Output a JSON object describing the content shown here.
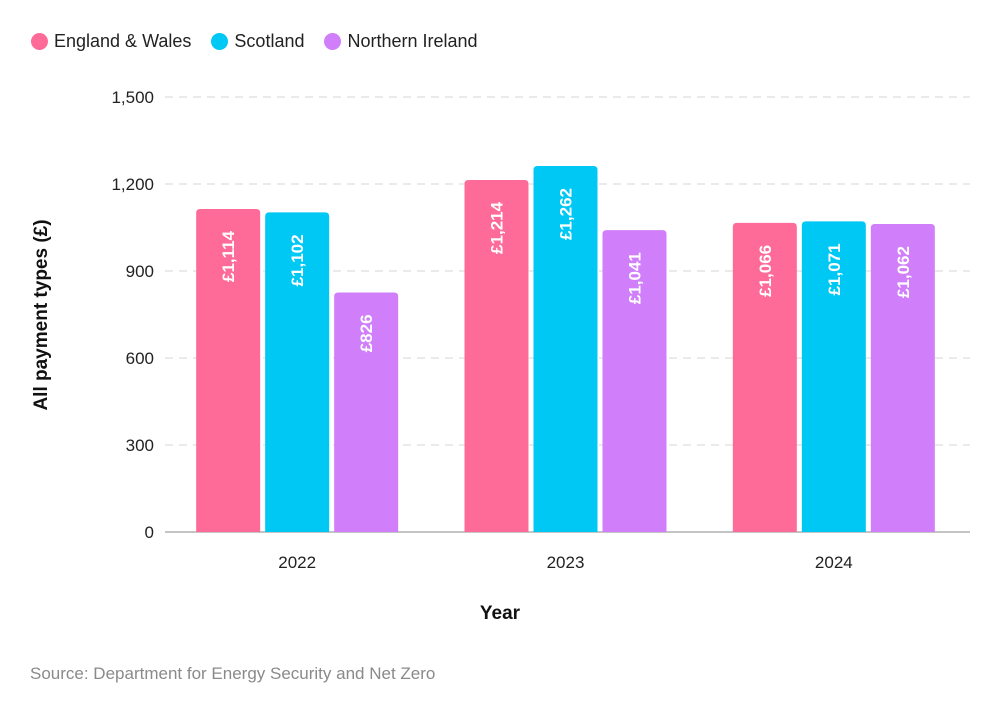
{
  "chart_data": {
    "type": "bar",
    "categories": [
      "2022",
      "2023",
      "2024"
    ],
    "series": [
      {
        "name": "England & Wales",
        "color": "#FF6B98",
        "values": [
          1114,
          1214,
          1066
        ],
        "labels": [
          "£1,114",
          "£1,214",
          "£1,066"
        ]
      },
      {
        "name": "Scotland",
        "color": "#00C8F5",
        "values": [
          1102,
          1262,
          1071
        ],
        "labels": [
          "£1,102",
          "£1,262",
          "£1,071"
        ]
      },
      {
        "name": "Northern Ireland",
        "color": "#D07EFA",
        "values": [
          826,
          1041,
          1062
        ],
        "labels": [
          "£826",
          "£1,041",
          "£1,062"
        ]
      }
    ],
    "xlabel": "Year",
    "ylabel": "All payment types (£)",
    "ylim": [
      0,
      1500
    ],
    "yticks": [
      0,
      300,
      600,
      900,
      1200,
      1500
    ],
    "ytick_labels": [
      "0",
      "300",
      "600",
      "900",
      "1,200",
      "1,500"
    ],
    "grid": true,
    "legend_position": "top-left"
  },
  "source": "Source: Department for Energy Security and Net Zero"
}
